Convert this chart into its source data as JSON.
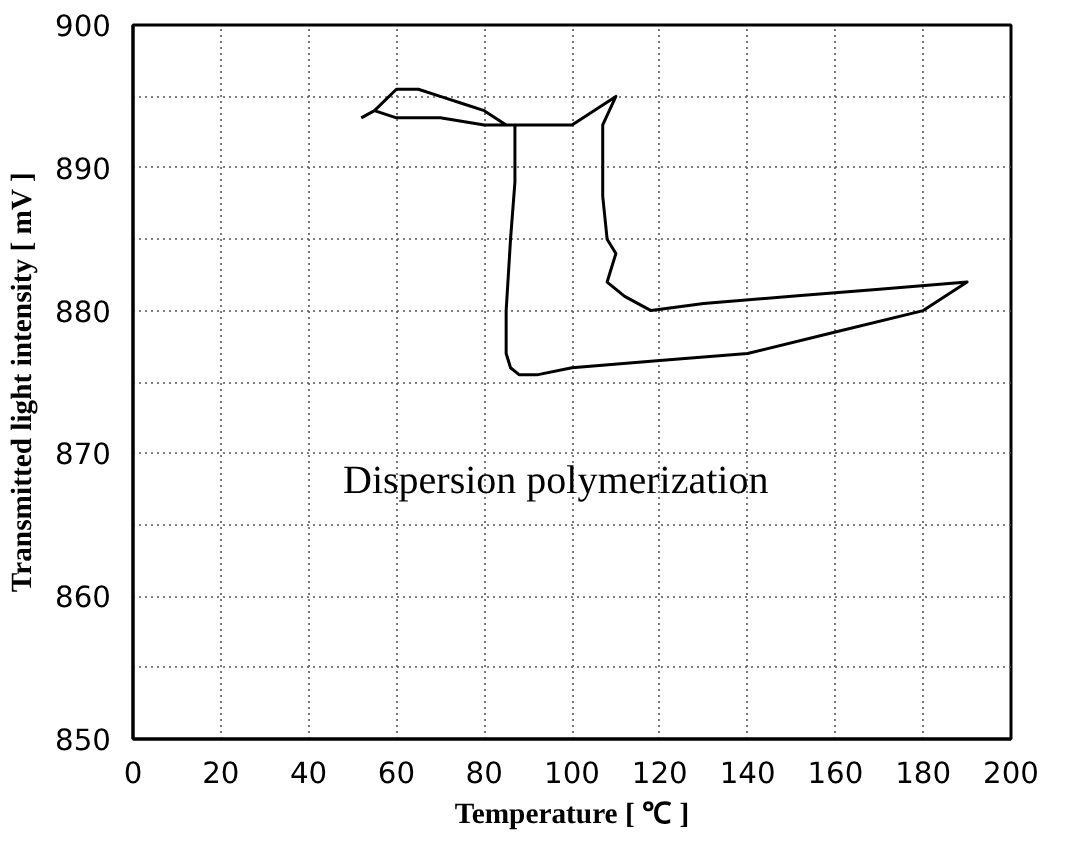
{
  "chart_data": {
    "type": "line",
    "xlabel": "Temperature [ ℃ ]",
    "ylabel": "Transmitted light intensity [ mV ]",
    "annotations": [
      "Dispersion polymerization"
    ],
    "x": [
      52,
      55,
      60,
      65,
      70,
      75,
      80,
      85,
      90,
      95,
      100,
      105,
      110,
      107,
      107,
      108,
      110,
      108,
      112,
      118,
      130,
      150,
      170,
      190,
      180,
      160,
      140,
      120,
      100,
      92,
      88,
      86,
      85,
      85,
      86,
      87,
      87,
      85,
      80,
      70,
      60,
      55
    ],
    "series": [
      {
        "color": "#000000",
        "values": [
          893.5,
          894,
          895.5,
          895.5,
          895,
          894.5,
          894,
          893,
          893,
          893,
          893,
          894,
          895,
          893,
          888,
          885,
          884,
          882,
          881,
          880,
          880.5,
          881,
          881.5,
          882,
          880,
          878.5,
          877,
          876.5,
          876,
          875.5,
          875.5,
          876,
          877,
          880,
          885,
          889,
          893,
          893,
          893,
          893.5,
          893.5,
          894
        ]
      }
    ],
    "xlim": [
      0,
      200
    ],
    "ylim": [
      850,
      900
    ],
    "xticks": [
      0,
      20,
      40,
      60,
      80,
      100,
      120,
      140,
      160,
      180,
      200
    ],
    "yticks": [
      850,
      {
        "value": 855,
        "label": null
      },
      860,
      {
        "value": 865,
        "label": null
      },
      870,
      {
        "value": 875,
        "label": null
      },
      880,
      {
        "value": 885,
        "label": null
      },
      890,
      {
        "value": 895,
        "label": null
      },
      900
    ],
    "grid": true,
    "marker": "none",
    "line_style": "solid"
  }
}
